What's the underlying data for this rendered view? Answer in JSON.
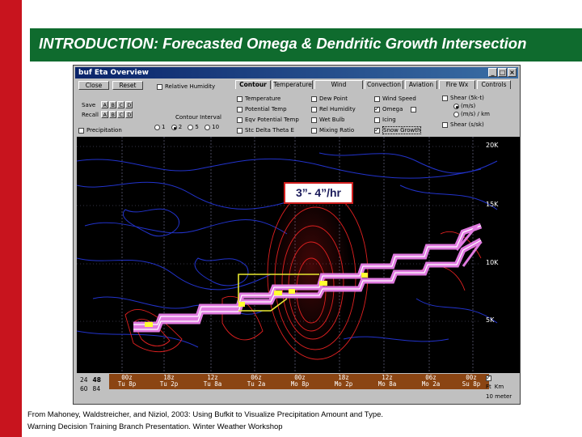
{
  "slide": {
    "title": "INTRODUCTION: Forecasted Omega & Dendritic Growth Intersection",
    "citation_line1": "From Mahoney, Waldstreicher, and Niziol, 2003: Using Bufkit to Visualize Precipitation Amount and Type.",
    "citation_line2": "Warning Decision Training Branch Presentation. Winter Weather Workshop",
    "annotation": "3”- 4”/hr",
    "colors": {
      "accent_red": "#c8141e",
      "title_green": "#0f6b2e"
    }
  },
  "window": {
    "title": "buf Eta Overview",
    "close_label": "Close",
    "reset_label": "Reset",
    "relative_humidity": "Relative Humidity",
    "save_label": "Save",
    "recall_label": "Recall",
    "slots": [
      "A",
      "B",
      "C",
      "D"
    ],
    "contour_interval_label": "Contour Interval",
    "intervals": [
      "1",
      "2",
      "5",
      "10"
    ],
    "precipitation_label": "Precipitation",
    "tabs": [
      "Contour",
      "Temperature",
      "Wind",
      "Convection",
      "Aviation",
      "Fire Wx",
      "Controls"
    ],
    "options_col1": [
      "Temperature",
      "Potential Temp",
      "Eqv Potential Temp",
      "Stc Delta Theta E"
    ],
    "options_col2": [
      "Dew Point",
      "Rel Humidity",
      "Wet Bulb",
      "Mixing Ratio"
    ],
    "options_col3": [
      "Wind Speed",
      "Omega",
      "Icing",
      "Snow Growth"
    ],
    "shear_label": "Shear (5k-t)",
    "shear_units": [
      "(m/s)",
      "(m/s) / km"
    ],
    "shear2_label": "Shear (s/sk)",
    "altitude_labels": [
      "20K",
      "15K",
      "10K",
      "5K"
    ],
    "times": [
      {
        "hour": "00z",
        "day": "Tu 8p"
      },
      {
        "hour": "18z",
        "day": "Tu 2p"
      },
      {
        "hour": "12z",
        "day": "Tu 8a"
      },
      {
        "hour": "06z",
        "day": "Tu 2a"
      },
      {
        "hour": "00z",
        "day": "Mo 8p"
      },
      {
        "hour": "18z",
        "day": "Mo 2p"
      },
      {
        "hour": "12z",
        "day": "Mo 8a"
      },
      {
        "hour": "06z",
        "day": "Mo 2a"
      },
      {
        "hour": "00z",
        "day": "Su 8p"
      }
    ],
    "range_top": [
      "24",
      "48"
    ],
    "range_bottom": [
      "60",
      "84"
    ],
    "units_labels": [
      "Ft",
      "Km"
    ],
    "tenmeter_label": "10 meter"
  }
}
